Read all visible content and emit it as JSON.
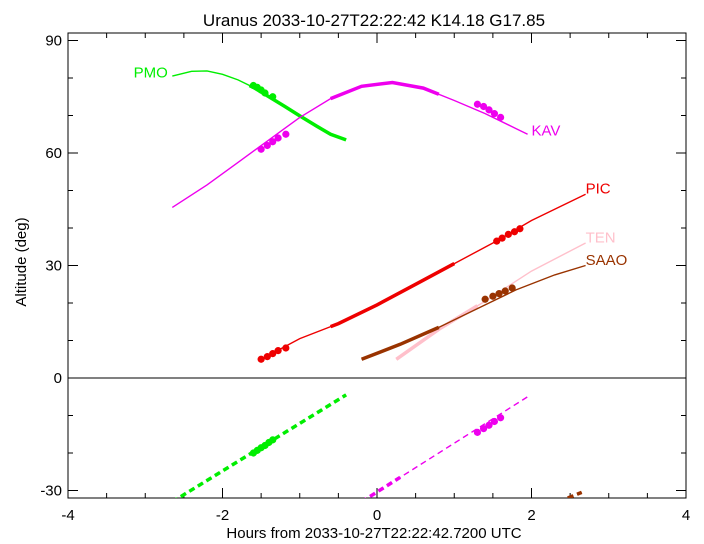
{
  "chart_data": {
    "type": "line",
    "title": "Uranus 2033-10-27T22:22:42  K14.18  G17.85",
    "xlabel": "Hours from 2033-10-27T22:22:42.7200 UTC",
    "ylabel": "Altitude (deg)",
    "xlim": [
      -4.0,
      4.0
    ],
    "ylim": [
      -32.0,
      92.0
    ],
    "xticks": [
      -4,
      -2,
      0,
      2,
      4
    ],
    "yticks": [
      -30,
      0,
      30,
      60,
      90
    ],
    "grid": false,
    "zero_line": 0,
    "series": [
      {
        "name": "PMO",
        "color": "#00ee00",
        "x": [
          -2.65,
          -2.4,
          -2.2,
          -2.0,
          -1.8,
          -1.6,
          -1.4,
          -1.2,
          -1.0,
          -0.8,
          -0.6,
          -0.4
        ],
        "y": [
          80.5,
          81.8,
          81.9,
          81.0,
          79.5,
          77.5,
          75.0,
          72.5,
          69.9,
          67.4,
          65.0,
          63.5
        ],
        "thick_range": [
          -1.65,
          -0.4
        ],
        "markers_x": [
          -1.6,
          -1.55,
          -1.5,
          -1.45,
          -1.35
        ],
        "markers_y": [
          78.0,
          77.5,
          76.8,
          76.0,
          75.0
        ],
        "below_horizon": {
          "x": [
            -2.65,
            -0.4
          ],
          "y": [
            -33.0,
            -4.5
          ],
          "markers_x": [
            -1.6,
            -1.55,
            -1.5,
            -1.45,
            -1.4,
            -1.35
          ],
          "markers_y": [
            -20.0,
            -19.3,
            -18.6,
            -18.0,
            -17.2,
            -16.5
          ],
          "thick_range": [
            -2.65,
            -0.4
          ]
        }
      },
      {
        "name": "KAV",
        "color": "#ee00ee",
        "x": [
          -2.65,
          -2.2,
          -1.8,
          -1.4,
          -1.0,
          -0.6,
          -0.2,
          0.2,
          0.6,
          1.0,
          1.4,
          1.8,
          1.95
        ],
        "y": [
          45.5,
          51.5,
          57.5,
          63.5,
          69.5,
          74.5,
          77.8,
          78.8,
          77.3,
          74.0,
          70.5,
          66.5,
          65.0
        ],
        "thick_range": [
          -0.6,
          0.8
        ],
        "markers_x": [
          -1.5,
          -1.42,
          -1.35,
          -1.28,
          -1.18,
          1.3,
          1.38,
          1.45,
          1.52,
          1.6
        ],
        "markers_y": [
          61.0,
          62.0,
          63.0,
          64.0,
          65.0,
          73.0,
          72.4,
          71.5,
          70.5,
          69.5
        ],
        "below_horizon": {
          "x": [
            -0.2,
            1.95
          ],
          "y": [
            -33.0,
            -5.0
          ],
          "markers_x": [
            1.3,
            1.38,
            1.45,
            1.52,
            1.6
          ],
          "markers_y": [
            -14.5,
            -13.5,
            -12.6,
            -11.6,
            -10.6
          ],
          "thick_range": [
            -0.2,
            0.3
          ]
        }
      },
      {
        "name": "PIC",
        "color": "#ee0000",
        "x": [
          -1.5,
          -1.0,
          -0.5,
          0.0,
          0.5,
          1.0,
          1.5,
          2.0,
          2.7
        ],
        "y": [
          5.0,
          10.5,
          14.5,
          19.5,
          25.0,
          30.5,
          36.0,
          42.0,
          49.0
        ],
        "thick_range": [
          -0.6,
          1.0
        ],
        "markers_x": [
          -1.5,
          -1.42,
          -1.35,
          -1.28,
          -1.18,
          1.55,
          1.62,
          1.7,
          1.78,
          1.85
        ],
        "markers_y": [
          5.0,
          5.7,
          6.5,
          7.3,
          8.0,
          36.5,
          37.3,
          38.3,
          39.0,
          39.8
        ]
      },
      {
        "name": "TEN",
        "color": "#ffc0cb",
        "x": [
          0.25,
          0.8,
          1.4,
          2.0,
          2.7
        ],
        "y": [
          5.0,
          13.0,
          20.5,
          28.5,
          36.0
        ],
        "thick_range": [
          0.25,
          1.3
        ],
        "markers_x": [],
        "markers_y": []
      },
      {
        "name": "SAAO",
        "color": "#993300",
        "x": [
          -0.2,
          0.3,
          0.8,
          1.3,
          1.8,
          2.3,
          2.7
        ],
        "y": [
          5.0,
          9.0,
          13.5,
          18.5,
          23.5,
          27.5,
          30.0
        ],
        "thick_range": [
          -0.2,
          0.8
        ],
        "markers_x": [
          1.4,
          1.5,
          1.58,
          1.66,
          1.75
        ],
        "markers_y": [
          21.0,
          21.8,
          22.5,
          23.2,
          24.0
        ],
        "below_horizon": {
          "x": [
            2.35,
            2.65
          ],
          "y": [
            -33.0,
            -30.5
          ],
          "markers_x": [],
          "markers_y": [],
          "thick_range": [
            2.35,
            2.65
          ]
        }
      }
    ],
    "label_points": {
      "PMO": {
        "x": -3.15,
        "y": 81.5
      },
      "KAV": {
        "x": 2.0,
        "y": 66.0
      },
      "PIC": {
        "x": 2.7,
        "y": 50.5
      },
      "TEN": {
        "x": 2.7,
        "y": 37.5
      },
      "SAAO": {
        "x": 2.7,
        "y": 31.5
      }
    }
  }
}
